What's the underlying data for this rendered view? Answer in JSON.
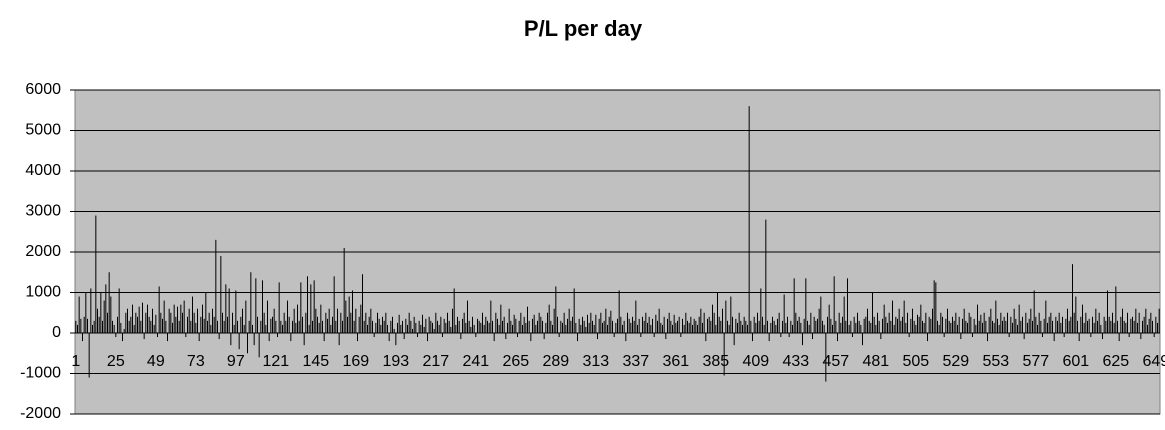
{
  "chart_data": {
    "type": "bar",
    "title": "P/L per day",
    "color": "#000000",
    "background": "#c0c0c0",
    "grid": true,
    "ylim": [
      -2000,
      6000
    ],
    "yticks": [
      -2000,
      -1000,
      0,
      1000,
      2000,
      3000,
      4000,
      5000,
      6000
    ],
    "categories": [
      "1",
      null,
      null,
      null,
      null,
      null,
      null,
      null,
      null,
      null,
      null,
      null,
      null,
      null,
      null,
      null,
      null,
      null,
      null,
      null,
      null,
      null,
      null,
      null,
      "25",
      null,
      null,
      null,
      null,
      null,
      null,
      null,
      null,
      null,
      null,
      null,
      null,
      null,
      null,
      null,
      null,
      null,
      null,
      null,
      null,
      null,
      null,
      null,
      "49",
      null,
      null,
      null,
      null,
      null,
      null,
      null,
      null,
      null,
      null,
      null,
      null,
      null,
      null,
      null,
      null,
      null,
      null,
      null,
      null,
      null,
      null,
      null,
      "73",
      null,
      null,
      null,
      null,
      null,
      null,
      null,
      null,
      null,
      null,
      null,
      null,
      null,
      null,
      null,
      null,
      null,
      null,
      null,
      null,
      null,
      null,
      null,
      "97",
      null,
      null,
      null,
      null,
      null,
      null,
      null,
      null,
      null,
      null,
      null,
      null,
      null,
      null,
      null,
      null,
      null,
      null,
      null,
      null,
      null,
      null,
      null,
      "121",
      null,
      null,
      null,
      null,
      null,
      null,
      null,
      null,
      null,
      null,
      null,
      null,
      null,
      null,
      null,
      null,
      null,
      null,
      null,
      null,
      null,
      null,
      null,
      "145",
      null,
      null,
      null,
      null,
      null,
      null,
      null,
      null,
      null,
      null,
      null,
      null,
      null,
      null,
      null,
      null,
      null,
      null,
      null,
      null,
      null,
      null,
      null,
      "169",
      null,
      null,
      null,
      null,
      null,
      null,
      null,
      null,
      null,
      null,
      null,
      null,
      null,
      null,
      null,
      null,
      null,
      null,
      null,
      null,
      null,
      null,
      null,
      "193",
      null,
      null,
      null,
      null,
      null,
      null,
      null,
      null,
      null,
      null,
      null,
      null,
      null,
      null,
      null,
      null,
      null,
      null,
      null,
      null,
      null,
      null,
      null,
      "217",
      null,
      null,
      null,
      null,
      null,
      null,
      null,
      null,
      null,
      null,
      null,
      null,
      null,
      null,
      null,
      null,
      null,
      null,
      null,
      null,
      null,
      null,
      null,
      "241",
      null,
      null,
      null,
      null,
      null,
      null,
      null,
      null,
      null,
      null,
      null,
      null,
      null,
      null,
      null,
      null,
      null,
      null,
      null,
      null,
      null,
      null,
      null,
      "265",
      null,
      null,
      null,
      null,
      null,
      null,
      null,
      null,
      null,
      null,
      null,
      null,
      null,
      null,
      null,
      null,
      null,
      null,
      null,
      null,
      null,
      null,
      null,
      "289",
      null,
      null,
      null,
      null,
      null,
      null,
      null,
      null,
      null,
      null,
      null,
      null,
      null,
      null,
      null,
      null,
      null,
      null,
      null,
      null,
      null,
      null,
      null,
      "313",
      null,
      null,
      null,
      null,
      null,
      null,
      null,
      null,
      null,
      null,
      null,
      null,
      null,
      null,
      null,
      null,
      null,
      null,
      null,
      null,
      null,
      null,
      null,
      "337",
      null,
      null,
      null,
      null,
      null,
      null,
      null,
      null,
      null,
      null,
      null,
      null,
      null,
      null,
      null,
      null,
      null,
      null,
      null,
      null,
      null,
      null,
      null,
      "361",
      null,
      null,
      null,
      null,
      null,
      null,
      null,
      null,
      null,
      null,
      null,
      null,
      null,
      null,
      null,
      null,
      null,
      null,
      null,
      null,
      null,
      null,
      null,
      "385",
      null,
      null,
      null,
      null,
      null,
      null,
      null,
      null,
      null,
      null,
      null,
      null,
      null,
      null,
      null,
      null,
      null,
      null,
      null,
      null,
      null,
      null,
      null,
      "409",
      null,
      null,
      null,
      null,
      null,
      null,
      null,
      null,
      null,
      null,
      null,
      null,
      null,
      null,
      null,
      null,
      null,
      null,
      null,
      null,
      null,
      null,
      null,
      "433",
      null,
      null,
      null,
      null,
      null,
      null,
      null,
      null,
      null,
      null,
      null,
      null,
      null,
      null,
      null,
      null,
      null,
      null,
      null,
      null,
      null,
      null,
      null,
      "457",
      null,
      null,
      null,
      null,
      null,
      null,
      null,
      null,
      null,
      null,
      null,
      null,
      null,
      null,
      null,
      null,
      null,
      null,
      null,
      null,
      null,
      null,
      null,
      "481",
      null,
      null,
      null,
      null,
      null,
      null,
      null,
      null,
      null,
      null,
      null,
      null,
      null,
      null,
      null,
      null,
      null,
      null,
      null,
      null,
      null,
      null,
      null,
      "505",
      null,
      null,
      null,
      null,
      null,
      null,
      null,
      null,
      null,
      null,
      null,
      null,
      null,
      null,
      null,
      null,
      null,
      null,
      null,
      null,
      null,
      null,
      null,
      "529",
      null,
      null,
      null,
      null,
      null,
      null,
      null,
      null,
      null,
      null,
      null,
      null,
      null,
      null,
      null,
      null,
      null,
      null,
      null,
      null,
      null,
      null,
      null,
      "553",
      null,
      null,
      null,
      null,
      null,
      null,
      null,
      null,
      null,
      null,
      null,
      null,
      null,
      null,
      null,
      null,
      null,
      null,
      null,
      null,
      null,
      null,
      null,
      "577",
      null,
      null,
      null,
      null,
      null,
      null,
      null,
      null,
      null,
      null,
      null,
      null,
      null,
      null,
      null,
      null,
      null,
      null,
      null,
      null,
      null,
      null,
      null,
      "601",
      null,
      null,
      null,
      null,
      null,
      null,
      null,
      null,
      null,
      null,
      null,
      null,
      null,
      null,
      null,
      null,
      null,
      null,
      null,
      null,
      null,
      null,
      null,
      "625",
      null,
      null,
      null,
      null,
      null,
      null,
      null,
      null,
      null,
      null,
      null,
      null,
      null,
      null,
      null,
      null,
      null,
      null,
      null,
      null,
      null,
      null,
      null,
      "649",
      null,
      null
    ],
    "values": [
      300,
      200,
      900,
      350,
      -200,
      400,
      1000,
      350,
      -1100,
      1100,
      200,
      300,
      2900,
      600,
      400,
      1000,
      300,
      800,
      1200,
      500,
      1500,
      900,
      300,
      200,
      -100,
      400,
      1100,
      250,
      -200,
      100,
      500,
      600,
      300,
      400,
      700,
      200,
      500,
      400,
      650,
      300,
      750,
      -150,
      500,
      700,
      400,
      300,
      600,
      200,
      450,
      -100,
      1150,
      500,
      350,
      800,
      300,
      -200,
      600,
      500,
      250,
      700,
      400,
      650,
      300,
      700,
      500,
      800,
      -100,
      400,
      600,
      300,
      900,
      500,
      250,
      600,
      -200,
      400,
      700,
      350,
      1000,
      300,
      500,
      200,
      600,
      400,
      2300,
      300,
      -150,
      1900,
      500,
      300,
      1200,
      400,
      1100,
      -300,
      500,
      200,
      1050,
      300,
      -400,
      400,
      600,
      200,
      800,
      -500,
      300,
      1500,
      200,
      -300,
      1350,
      400,
      -600,
      300,
      1300,
      500,
      200,
      800,
      -200,
      350,
      400,
      600,
      300,
      -100,
      1250,
      300,
      200,
      500,
      300,
      800,
      400,
      -200,
      300,
      600,
      250,
      700,
      300,
      1250,
      400,
      -300,
      500,
      1400,
      200,
      1200,
      300,
      1300,
      600,
      400,
      250,
      700,
      300,
      -200,
      500,
      350,
      600,
      200,
      400,
      1400,
      300,
      600,
      -300,
      500,
      300,
      2100,
      800,
      400,
      900,
      500,
      1050,
      300,
      600,
      -200,
      400,
      700,
      1450,
      300,
      500,
      200,
      400,
      600,
      300,
      -100,
      250,
      500,
      350,
      200,
      400,
      300,
      500,
      200,
      -200,
      300,
      400,
      100,
      -300,
      250,
      450,
      200,
      300,
      -150,
      350,
      200,
      500,
      300,
      100,
      400,
      250,
      -100,
      300,
      200,
      450,
      150,
      350,
      -200,
      400,
      300,
      250,
      100,
      500,
      300,
      200,
      400,
      -100,
      350,
      250,
      500,
      300,
      150,
      600,
      1100,
      200,
      400,
      300,
      -150,
      350,
      500,
      250,
      800,
      300,
      150,
      400,
      200,
      -100,
      350,
      300,
      250,
      500,
      200,
      400,
      300,
      250,
      800,
      300,
      -200,
      500,
      350,
      200,
      700,
      300,
      400,
      -150,
      250,
      600,
      300,
      200,
      450,
      350,
      -100,
      300,
      500,
      200,
      400,
      250,
      650,
      300,
      -200,
      350,
      450,
      200,
      300,
      500,
      400,
      300,
      -150,
      250,
      500,
      700,
      300,
      200,
      600,
      1150,
      400,
      -100,
      300,
      250,
      500,
      200,
      350,
      600,
      300,
      400,
      1100,
      250,
      -200,
      350,
      200,
      400,
      300,
      150,
      450,
      250,
      500,
      300,
      200,
      450,
      -150,
      350,
      500,
      250,
      300,
      600,
      200,
      400,
      550,
      300,
      -100,
      250,
      350,
      1050,
      400,
      200,
      300,
      -200,
      500,
      350,
      250,
      400,
      300,
      800,
      200,
      350,
      -100,
      400,
      300,
      500,
      250,
      400,
      200,
      350,
      -100,
      450,
      300,
      600,
      250,
      200,
      400,
      -150,
      350,
      500,
      300,
      200,
      450,
      250,
      300,
      400,
      -100,
      350,
      200,
      500,
      300,
      250,
      400,
      200,
      350,
      300,
      200,
      400,
      600,
      250,
      500,
      -200,
      350,
      400,
      300,
      700,
      500,
      200,
      1000,
      400,
      300,
      600,
      -1050,
      800,
      300,
      200,
      900,
      400,
      -300,
      350,
      250,
      500,
      300,
      200,
      400,
      300,
      200,
      5600,
      300,
      -200,
      400,
      250,
      500,
      300,
      1100,
      400,
      200,
      2800,
      300,
      -200,
      250,
      400,
      300,
      200,
      350,
      500,
      -100,
      300,
      950,
      250,
      400,
      -100,
      300,
      200,
      1350,
      500,
      300,
      400,
      250,
      -300,
      350,
      1350,
      300,
      200,
      500,
      -150,
      400,
      300,
      350,
      600,
      900,
      300,
      200,
      -1200,
      400,
      700,
      350,
      200,
      1400,
      300,
      -200,
      500,
      250,
      400,
      900,
      300,
      1350,
      200,
      300,
      -100,
      400,
      250,
      500,
      300,
      200,
      -300,
      350,
      400,
      600,
      300,
      250,
      1000,
      400,
      200,
      500,
      300,
      -150,
      350,
      700,
      400,
      250,
      500,
      300,
      800,
      200,
      400,
      350,
      600,
      300,
      400,
      800,
      250,
      500,
      -100,
      350,
      600,
      300,
      200,
      450,
      400,
      700,
      300,
      250,
      500,
      -200,
      400,
      350,
      600,
      1300,
      1250,
      300,
      200,
      500,
      400,
      -100,
      350,
      600,
      300,
      250,
      400,
      300,
      500,
      200,
      400,
      -150,
      350,
      600,
      300,
      250,
      500,
      400,
      -100,
      350,
      200,
      700,
      300,
      450,
      250,
      500,
      300,
      -200,
      400,
      600,
      300,
      250,
      800,
      350,
      200,
      500,
      300,
      400,
      300,
      500,
      -100,
      400,
      250,
      600,
      350,
      200,
      700,
      300,
      400,
      -150,
      500,
      250,
      350,
      600,
      300,
      1050,
      400,
      200,
      500,
      300,
      -100,
      350,
      800,
      250,
      400,
      500,
      300,
      -200,
      400,
      300,
      500,
      250,
      400,
      -100,
      350,
      600,
      300,
      400,
      1700,
      500,
      900,
      300,
      -200,
      400,
      700,
      250,
      500,
      300,
      350,
      -100,
      400,
      250,
      600,
      300,
      500,
      200,
      -150,
      400,
      300,
      1050,
      400,
      300,
      500,
      250,
      1150,
      300,
      -200,
      400,
      600,
      300,
      250,
      500,
      -100,
      350,
      400,
      300,
      600,
      250,
      500,
      -150,
      300,
      400,
      600,
      200,
      350,
      500,
      300,
      -100,
      400,
      250,
      600
    ]
  }
}
